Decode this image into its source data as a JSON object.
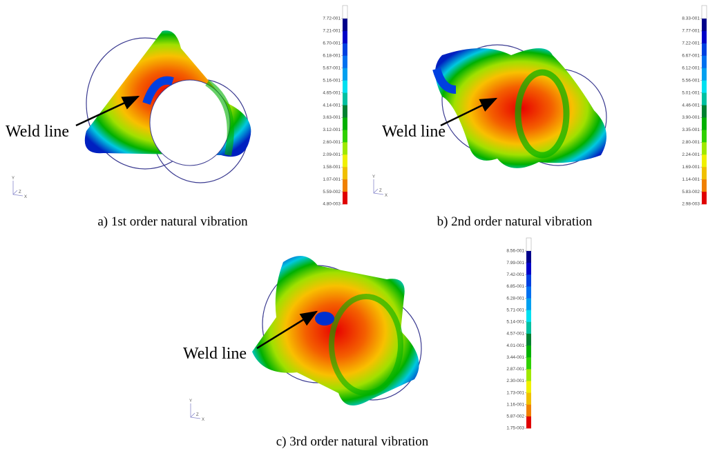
{
  "panels": [
    {
      "caption": "a) 1st order natural vibration",
      "weld_label": "Weld line",
      "colorbar": [
        "7.72-001",
        "7.21-001",
        "6.70-001",
        "6.18-001",
        "5.67-001",
        "5.16-001",
        "4.65-001",
        "4.14-001",
        "3.63-001",
        "3.12-001",
        "2.60-001",
        "2.09-001",
        "1.58-001",
        "1.07-001",
        "5.59-002",
        "4.80-003"
      ]
    },
    {
      "caption": "b) 2nd order natural vibration",
      "weld_label": "Weld line",
      "colorbar": [
        "8.33-001",
        "7.77-001",
        "7.22-001",
        "6.67-001",
        "6.12-001",
        "5.56-001",
        "5.01-001",
        "4.46-001",
        "3.90-001",
        "3.35-001",
        "2.80-001",
        "2.24-001",
        "1.69-001",
        "1.14-001",
        "5.83-002",
        "2.98-003"
      ]
    },
    {
      "caption": "c) 3rd order natural vibration",
      "weld_label": "Weld line",
      "colorbar": [
        "8.56-001",
        "7.99-001",
        "7.42-001",
        "6.85-001",
        "6.28-001",
        "5.71-001",
        "5.14-001",
        "4.57-001",
        "4.01-001",
        "3.44-001",
        "2.87-001",
        "2.30-001",
        "1.73-001",
        "1.16-001",
        "5.87-002",
        "1.75-003"
      ]
    }
  ],
  "triad": {
    "y": "Y",
    "z": "Z",
    "x": "X"
  }
}
